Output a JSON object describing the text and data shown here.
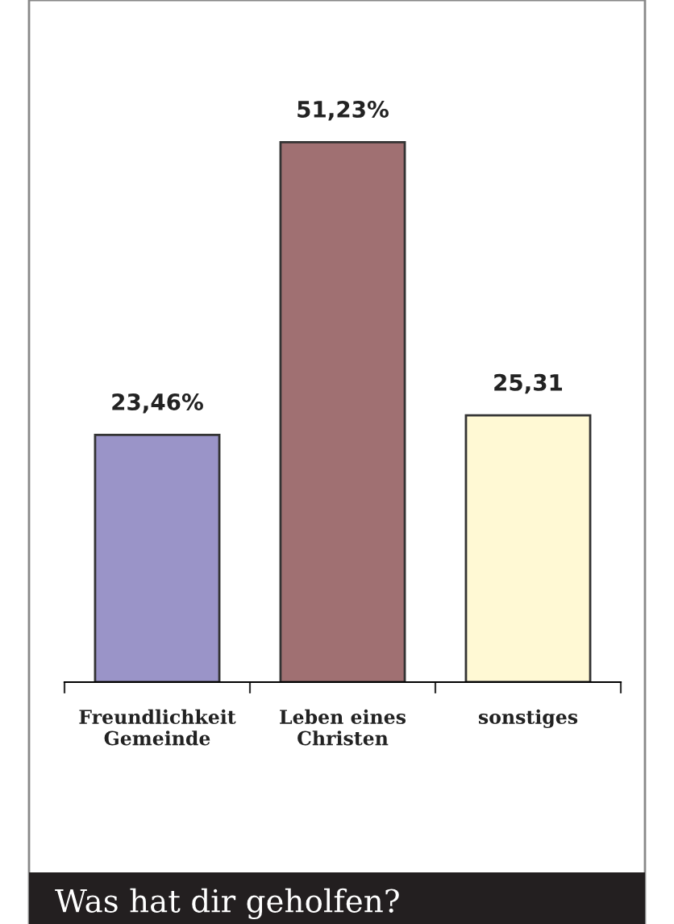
{
  "chart_data": {
    "type": "bar",
    "title": "Was hat dir geholfen?",
    "categories": [
      "Freundlichkeit\nGemeinde",
      "Leben eines\nChristen",
      "sonstiges"
    ],
    "values": [
      23.46,
      51.23,
      25.31
    ],
    "colors": [
      "#9a94c8",
      "#a07072",
      "#fff9d4"
    ],
    "value_labels": [
      "23,46%",
      "51,23%",
      "25,31"
    ],
    "grid": false,
    "legend": false
  }
}
